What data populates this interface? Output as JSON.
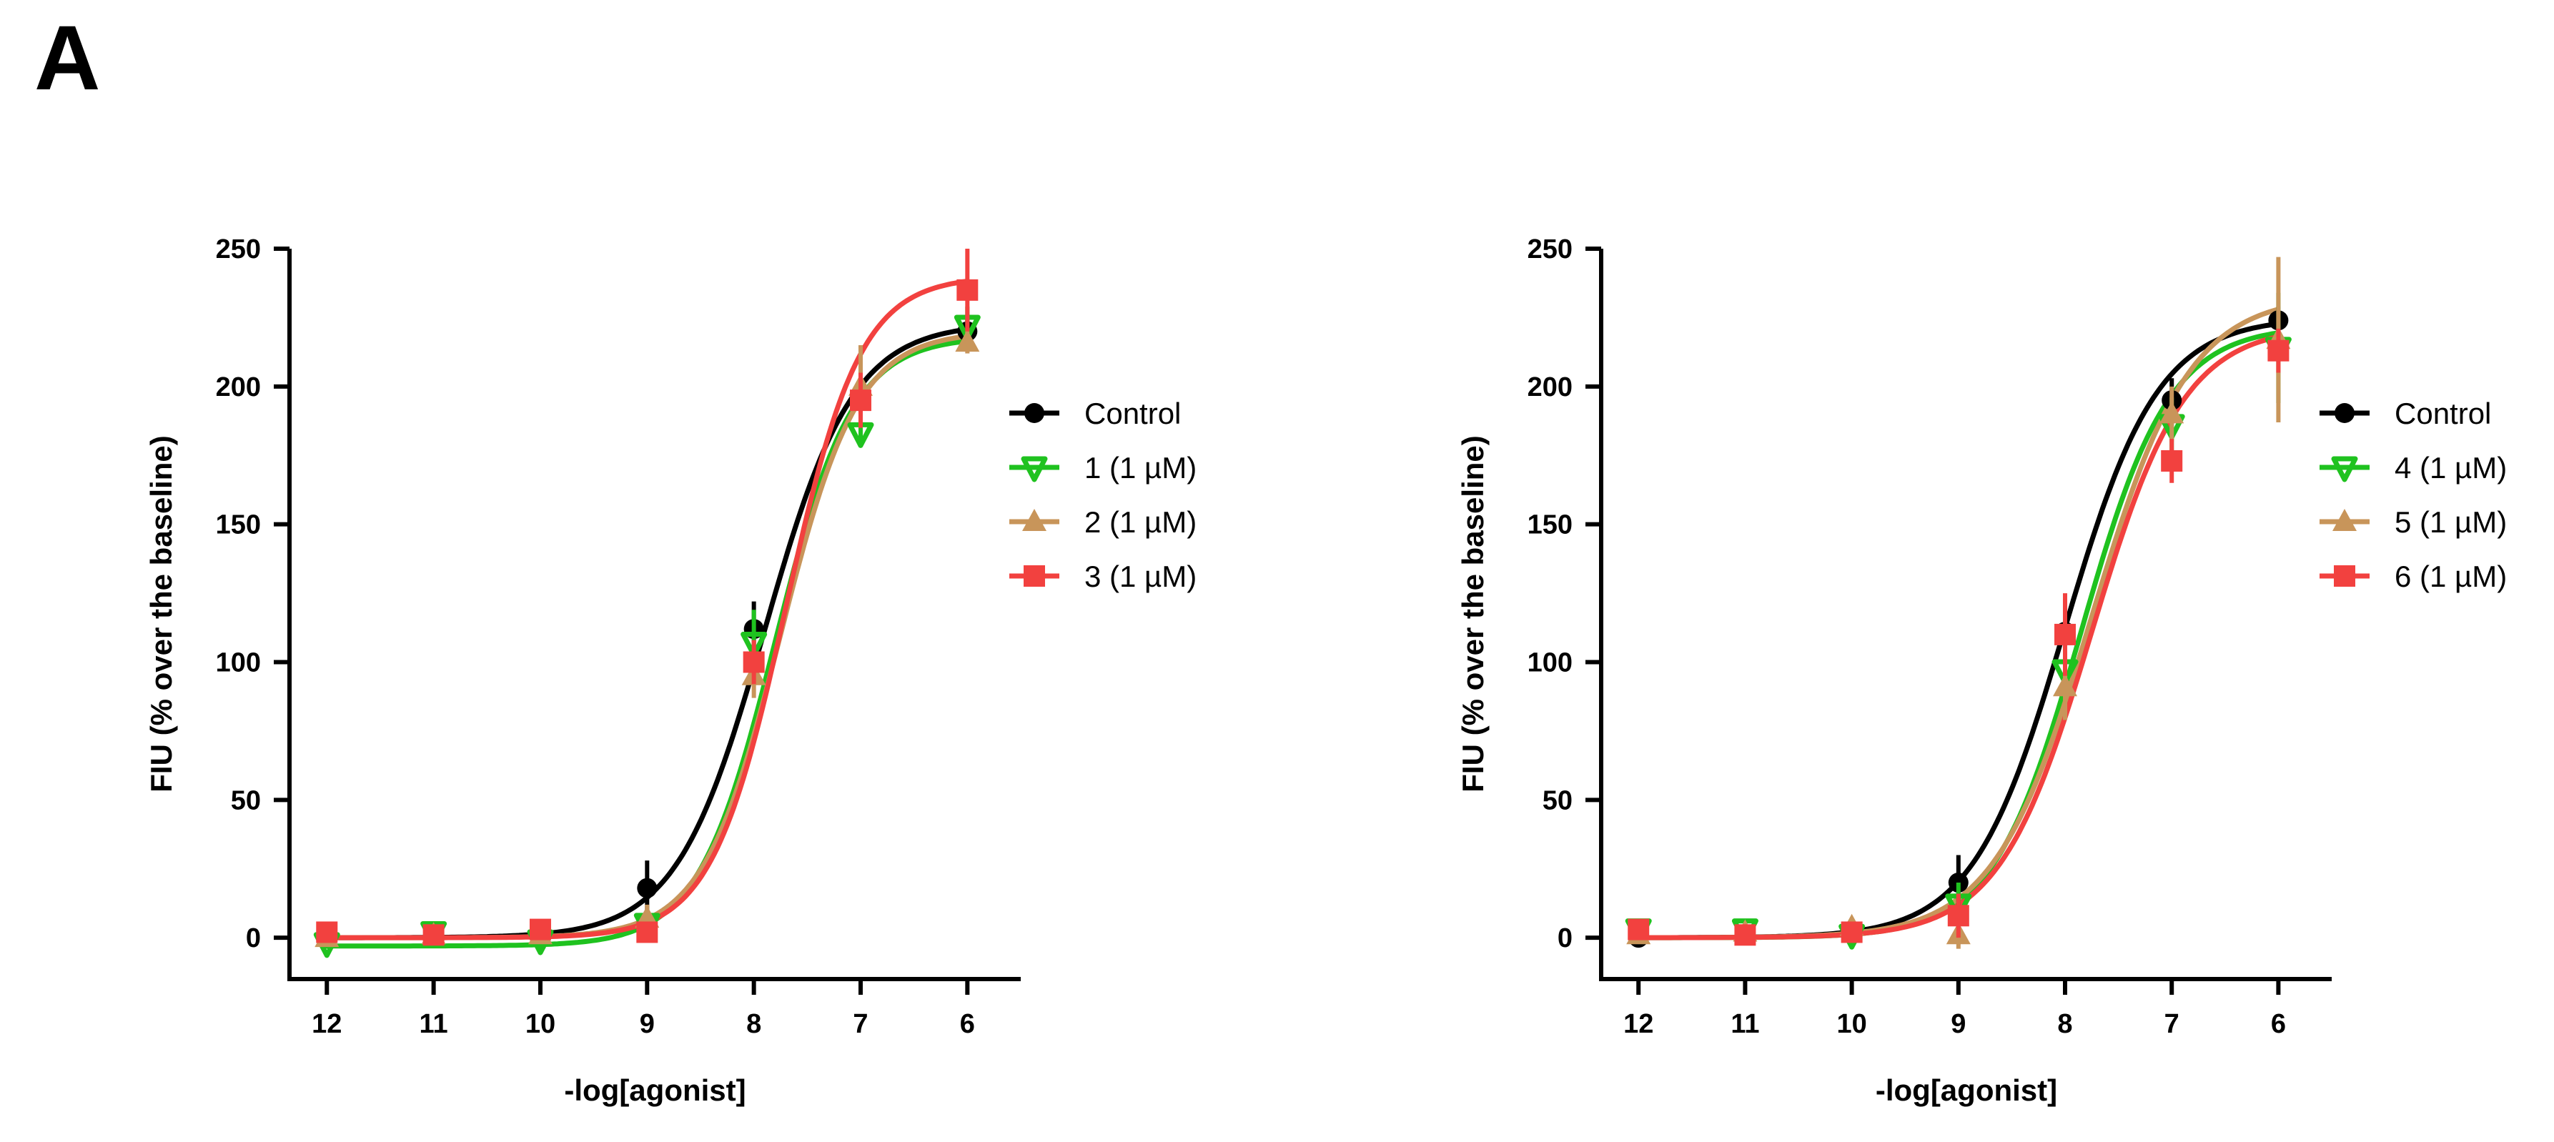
{
  "panel_label": "A",
  "chart_data": [
    {
      "type": "line",
      "title": "",
      "xlabel": "-log[agonist]",
      "ylabel": "FIU (% over the baseline)",
      "x_ticks": [
        "12",
        "11",
        "10",
        "9",
        "8",
        "7",
        "6"
      ],
      "y_ticks": [
        "0",
        "50",
        "100",
        "150",
        "200",
        "250"
      ],
      "xlim": [
        12.35,
        5.5
      ],
      "ylim": [
        -15,
        250
      ],
      "legend_position": "right",
      "x": [
        12,
        11,
        10,
        9,
        8,
        7,
        6
      ],
      "series": [
        {
          "name": "Control",
          "color": "#000000",
          "marker": "circle",
          "values": [
            0,
            1,
            2,
            18,
            112,
            196,
            220
          ],
          "errors": [
            2,
            2,
            2,
            10,
            10,
            6,
            5
          ],
          "fit": {
            "bottom": 0,
            "top": 223,
            "logec50": 7.9,
            "hill": 1.05
          }
        },
        {
          "name": "1 (1 µM)",
          "color": "#1fc21f",
          "marker": "triangle-down",
          "values": [
            -2,
            2,
            -1,
            5,
            107,
            183,
            222
          ],
          "errors": [
            2,
            2,
            2,
            5,
            12,
            5,
            7
          ],
          "fit": {
            "bottom": -3,
            "top": 218,
            "logec50": 7.8,
            "hill": 1.2
          }
        },
        {
          "name": "2 (1 µM)",
          "color": "#c8955a",
          "marker": "triangle-up",
          "values": [
            0,
            1,
            1,
            7,
            95,
            200,
            216
          ],
          "errors": [
            2,
            2,
            2,
            5,
            8,
            15,
            4
          ],
          "fit": {
            "bottom": 0,
            "top": 220,
            "logec50": 7.75,
            "hill": 1.2
          }
        },
        {
          "name": "3 (1 µM)",
          "color": "#f2413f",
          "marker": "square",
          "values": [
            2,
            1,
            3,
            2,
            100,
            195,
            235
          ],
          "errors": [
            2,
            2,
            2,
            3,
            8,
            10,
            15
          ],
          "fit": {
            "bottom": 0,
            "top": 240,
            "logec50": 7.7,
            "hill": 1.25
          }
        }
      ]
    },
    {
      "type": "line",
      "title": "",
      "xlabel": "-log[agonist]",
      "ylabel": "FIU (% over the baseline)",
      "x_ticks": [
        "12",
        "11",
        "10",
        "9",
        "8",
        "7",
        "6"
      ],
      "y_ticks": [
        "0",
        "50",
        "100",
        "150",
        "200",
        "250"
      ],
      "xlim": [
        12.35,
        5.5
      ],
      "ylim": [
        -15,
        250
      ],
      "legend_position": "right",
      "x": [
        12,
        11,
        10,
        9,
        8,
        7,
        6
      ],
      "series": [
        {
          "name": "Control",
          "color": "#000000",
          "marker": "circle",
          "values": [
            0,
            1,
            2,
            20,
            111,
            195,
            224
          ],
          "errors": [
            2,
            2,
            2,
            10,
            12,
            8,
            5
          ],
          "fit": {
            "bottom": 0,
            "top": 225,
            "logec50": 8.0,
            "hill": 1.0
          }
        },
        {
          "name": "4 (1 µM)",
          "color": "#1fc21f",
          "marker": "triangle-down",
          "values": [
            3,
            3,
            1,
            12,
            97,
            186,
            214
          ],
          "errors": [
            2,
            2,
            2,
            8,
            12,
            10,
            20
          ],
          "fit": {
            "bottom": 0,
            "top": 222,
            "logec50": 7.85,
            "hill": 1.05
          }
        },
        {
          "name": "5 (1 µM)",
          "color": "#c8955a",
          "marker": "triangle-up",
          "values": [
            1,
            2,
            4,
            1,
            91,
            190,
            217
          ],
          "errors": [
            2,
            2,
            2,
            5,
            12,
            10,
            30
          ],
          "fit": {
            "bottom": 0,
            "top": 233,
            "logec50": 7.75,
            "hill": 0.95
          }
        },
        {
          "name": "6 (1 µM)",
          "color": "#f2413f",
          "marker": "square",
          "values": [
            3,
            1,
            2,
            8,
            110,
            173,
            213
          ],
          "errors": [
            2,
            2,
            2,
            8,
            15,
            8,
            8
          ],
          "fit": {
            "bottom": 0,
            "top": 222,
            "logec50": 7.75,
            "hill": 1.0
          }
        }
      ]
    }
  ]
}
